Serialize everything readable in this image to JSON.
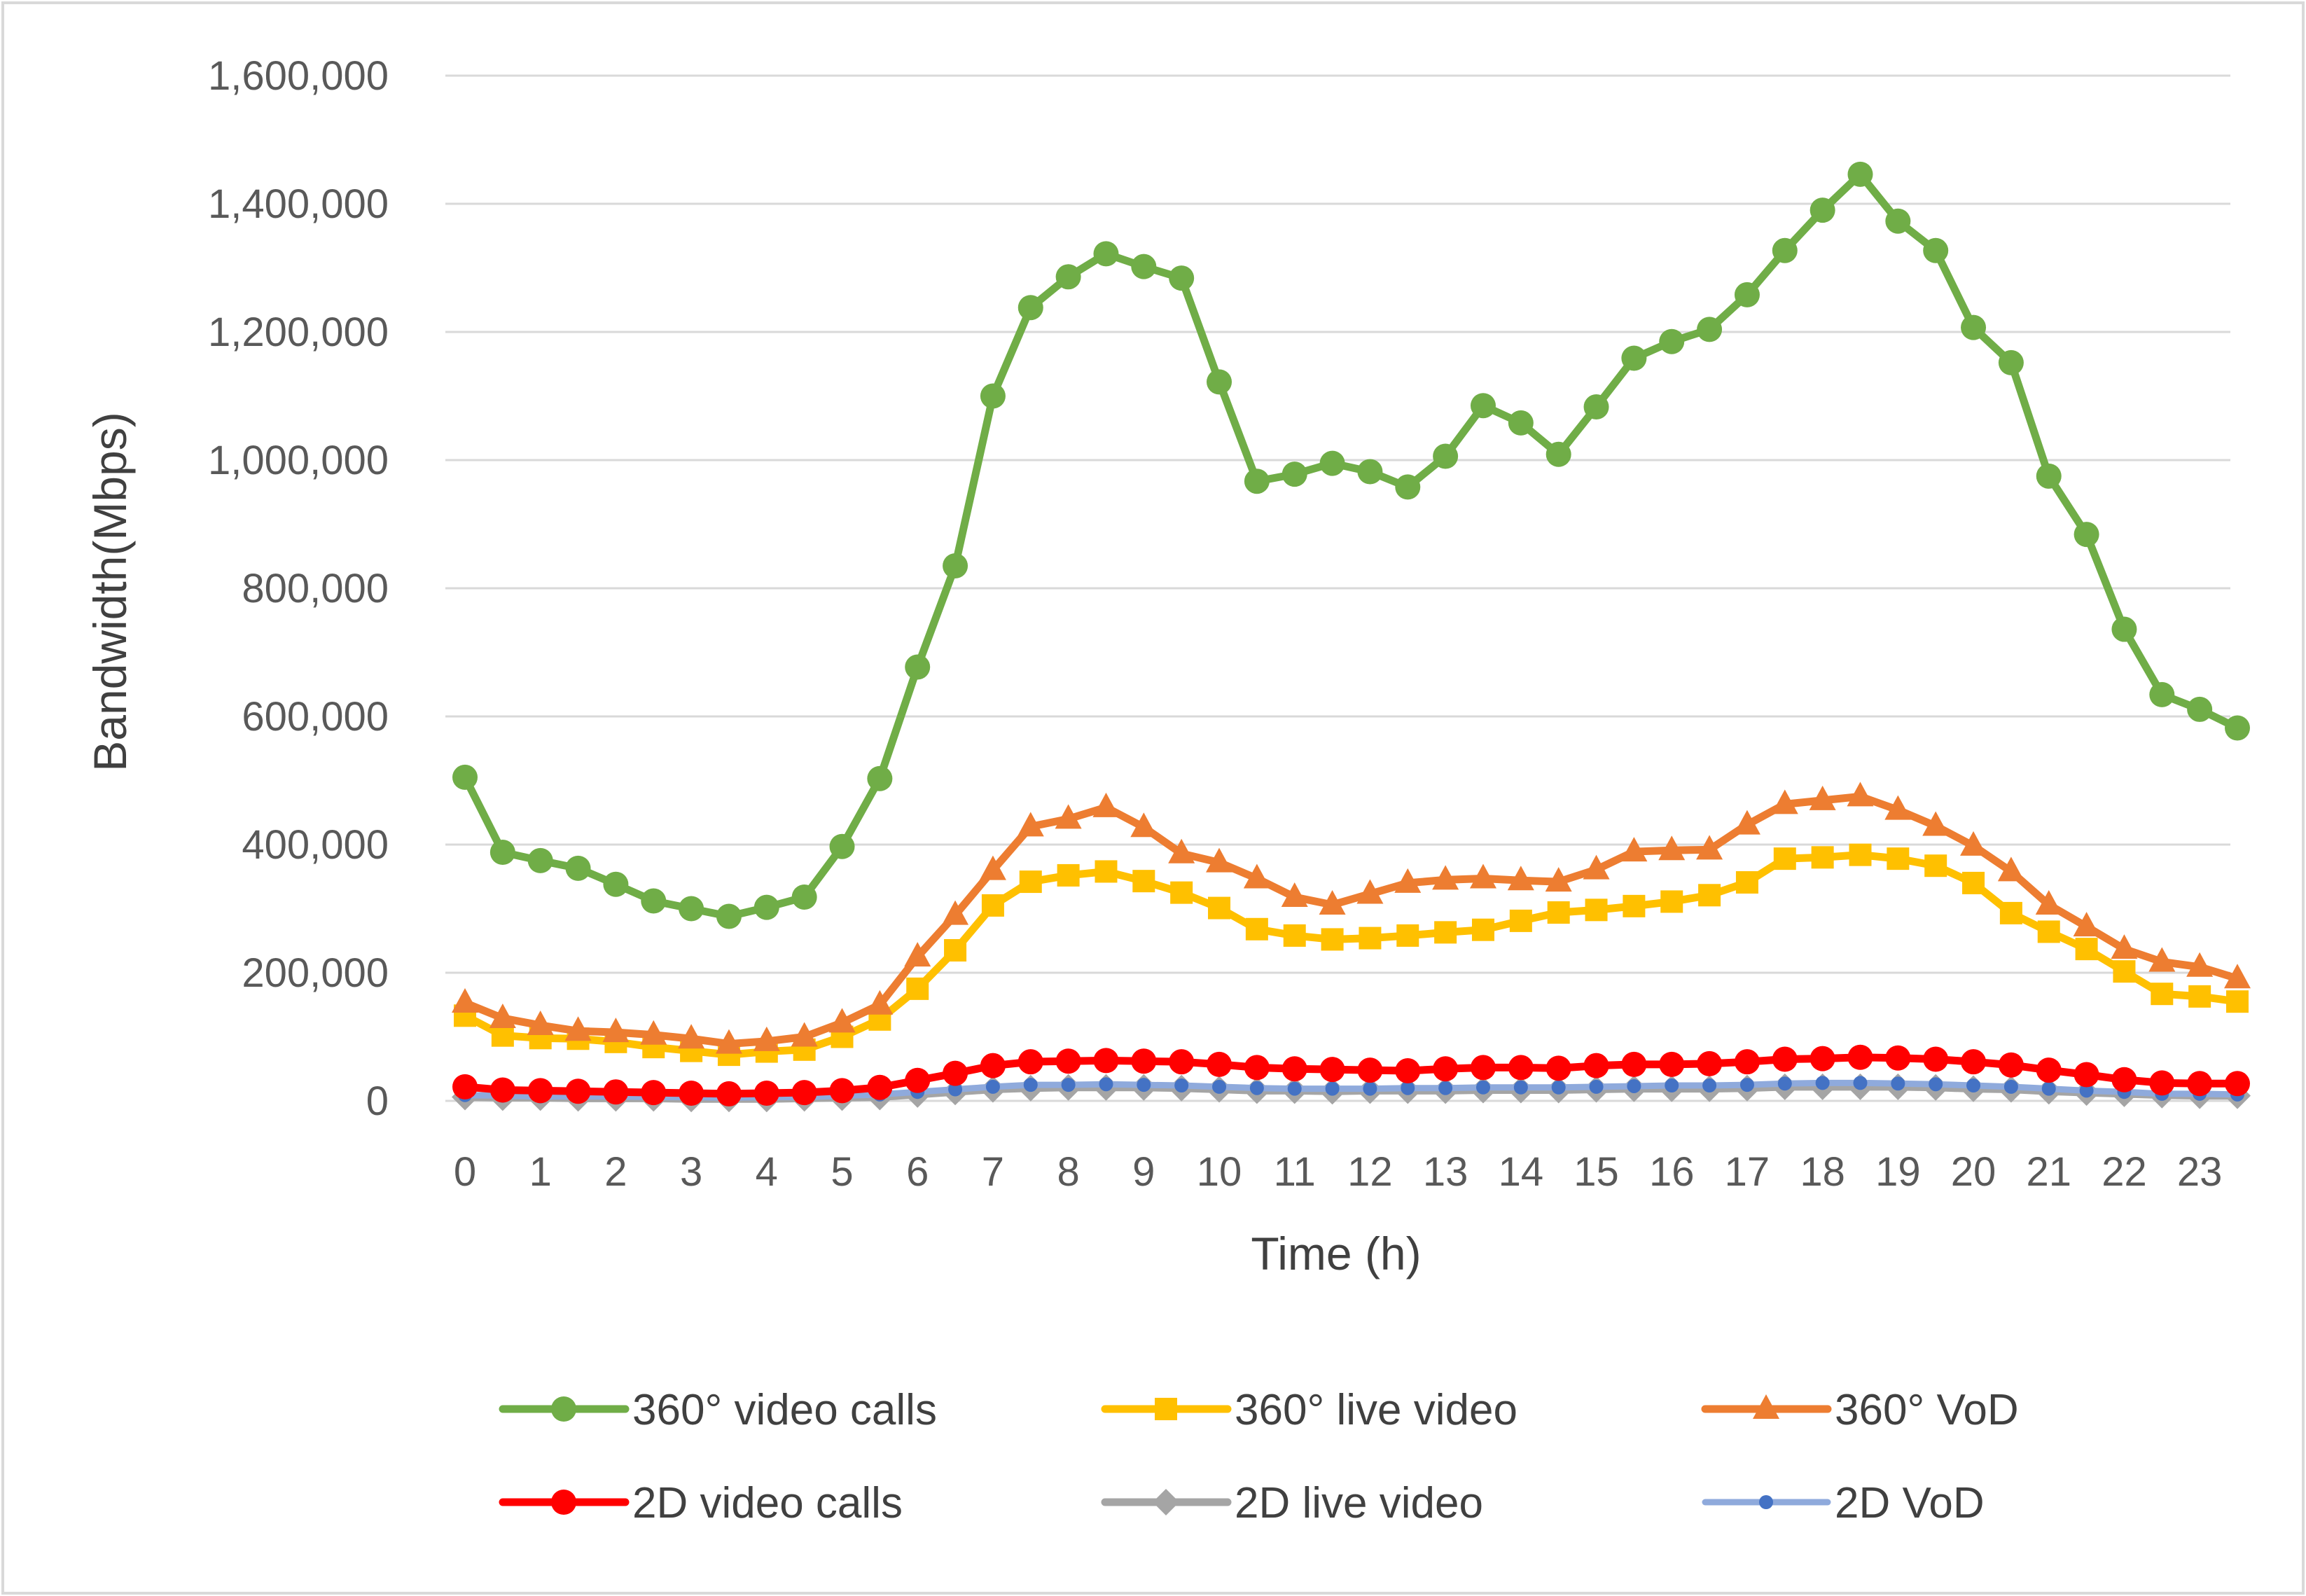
{
  "chart_data": {
    "type": "line",
    "title": "",
    "xlabel": "Time (h)",
    "ylabel": "Bandwidth(Mbps)",
    "ylim": [
      0,
      1600000
    ],
    "ytick_step": 200000,
    "ytick_labels": [
      "0",
      "200,000",
      "400,000",
      "600,000",
      "800,000",
      "1,000,000",
      "1,200,000",
      "1,400,000",
      "1,600,000"
    ],
    "xtick_labels": [
      "0",
      "1",
      "2",
      "3",
      "4",
      "5",
      "6",
      "7",
      "8",
      "9",
      "10",
      "11",
      "12",
      "13",
      "14",
      "15",
      "16",
      "17",
      "18",
      "19",
      "20",
      "21",
      "22",
      "23"
    ],
    "grid": true,
    "legend_position": "bottom",
    "x": [
      0,
      0.5,
      1,
      1.5,
      2,
      2.5,
      3,
      3.5,
      4,
      4.5,
      5,
      5.5,
      6,
      6.5,
      7,
      7.5,
      8,
      8.5,
      9,
      9.5,
      10,
      10.5,
      11,
      11.5,
      12,
      12.5,
      13,
      13.5,
      14,
      14.5,
      15,
      15.5,
      16,
      16.5,
      17,
      17.5,
      18,
      18.5,
      19,
      19.5,
      20,
      20.5,
      21,
      21.5,
      22,
      22.5,
      23,
      23.5
    ],
    "series": [
      {
        "name": "360° video calls",
        "color": "#70AD47",
        "marker": "circle",
        "values": [
          505000,
          388000,
          375000,
          363000,
          338000,
          312000,
          300000,
          288000,
          302000,
          318000,
          397000,
          503000,
          677000,
          835000,
          1100000,
          1238000,
          1286000,
          1322000,
          1302000,
          1284000,
          1122000,
          967000,
          978000,
          995000,
          982000,
          958000,
          1006000,
          1085000,
          1058000,
          1009000,
          1083000,
          1159000,
          1185000,
          1204000,
          1258000,
          1327000,
          1390000,
          1446000,
          1373000,
          1327000,
          1207000,
          1152000,
          975000,
          884000,
          736000,
          634000,
          611000,
          582000
        ]
      },
      {
        "name": "360° live video",
        "color": "#FFC000",
        "marker": "square",
        "values": [
          133000,
          102000,
          98000,
          97000,
          92000,
          84000,
          78000,
          72000,
          77000,
          80000,
          100000,
          127000,
          175000,
          235000,
          305000,
          342000,
          352000,
          358000,
          343000,
          325000,
          301000,
          268000,
          258000,
          252000,
          254000,
          258000,
          263000,
          267000,
          281000,
          294000,
          298000,
          304000,
          311000,
          321000,
          341000,
          378000,
          380000,
          384000,
          378000,
          367000,
          340000,
          293000,
          264000,
          237000,
          202000,
          167000,
          163000,
          155000
        ]
      },
      {
        "name": "360° VoD",
        "color": "#ED7D31",
        "marker": "triangle",
        "values": [
          153000,
          129000,
          118000,
          109000,
          107000,
          103000,
          97000,
          89000,
          93000,
          100000,
          122000,
          150000,
          225000,
          290000,
          360000,
          428000,
          440000,
          458000,
          427000,
          386000,
          372000,
          347000,
          318000,
          306000,
          323000,
          340000,
          345000,
          347000,
          344000,
          342000,
          361000,
          389000,
          391000,
          392000,
          431000,
          463000,
          469000,
          475000,
          454000,
          429000,
          398000,
          358000,
          306000,
          272000,
          237000,
          217000,
          209000,
          191000
        ]
      },
      {
        "name": "2D video calls",
        "color": "#FF0000",
        "marker": "circle",
        "values": [
          22000,
          17000,
          16000,
          15000,
          14000,
          13000,
          12000,
          11000,
          12000,
          13000,
          16000,
          21000,
          32000,
          43000,
          55000,
          61000,
          62000,
          63000,
          62000,
          61000,
          57000,
          52000,
          50000,
          49000,
          48000,
          47000,
          50000,
          52000,
          52000,
          51000,
          55000,
          57000,
          57000,
          58000,
          61000,
          65000,
          66000,
          68000,
          67000,
          65000,
          61000,
          56000,
          48000,
          41000,
          33000,
          28000,
          27000,
          27000
        ]
      },
      {
        "name": "2D live video",
        "color": "#A5A5A5",
        "marker": "diamond",
        "values": [
          6000,
          5000,
          5000,
          4000,
          4000,
          4000,
          3000,
          3000,
          3000,
          4000,
          5000,
          6000,
          10000,
          14000,
          18000,
          20000,
          21000,
          21000,
          21000,
          20000,
          18000,
          16000,
          16000,
          15000,
          16000,
          16000,
          16000,
          17000,
          17000,
          17000,
          18000,
          19000,
          19000,
          19000,
          20000,
          22000,
          22000,
          22000,
          22000,
          21000,
          19000,
          18000,
          15000,
          13000,
          11000,
          9000,
          8000,
          8000
        ]
      },
      {
        "name": "2D VoD",
        "color": "#4472C4",
        "lineColor": "#8FAADC",
        "marker": "smallcircle",
        "values": [
          9000,
          8000,
          7000,
          7000,
          7000,
          6000,
          6000,
          5000,
          6000,
          6000,
          8000,
          10000,
          14000,
          18000,
          22000,
          25000,
          25000,
          26000,
          25000,
          24000,
          22000,
          20000,
          19000,
          19000,
          19000,
          20000,
          20000,
          21000,
          21000,
          21000,
          22000,
          23000,
          24000,
          24000,
          25000,
          27000,
          28000,
          28000,
          27000,
          26000,
          24000,
          22000,
          19000,
          16000,
          14000,
          11000,
          11000,
          10000
        ]
      }
    ]
  }
}
